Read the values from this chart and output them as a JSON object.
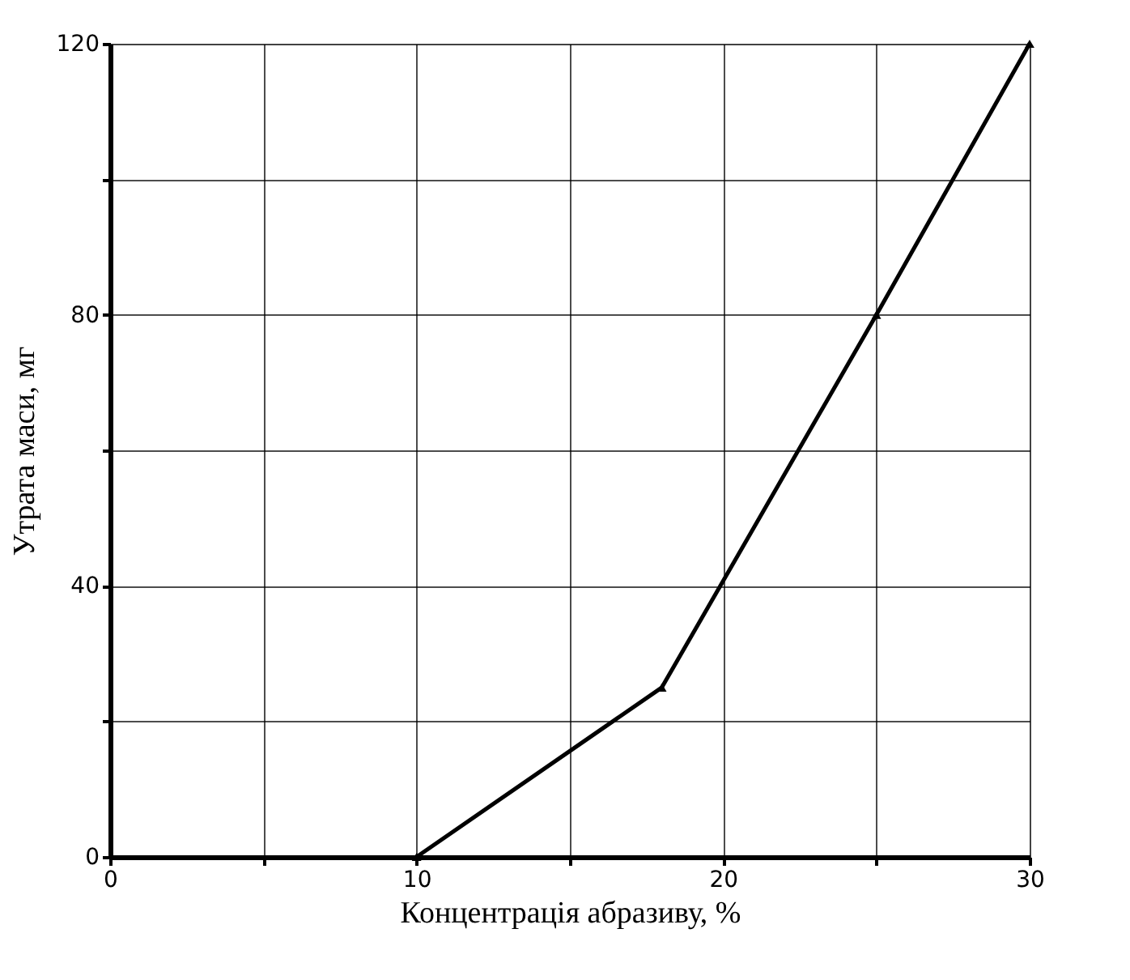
{
  "chart_data": {
    "type": "line",
    "xlabel": "Концентрація абразиву, %",
    "ylabel": "Утрата маси, мг",
    "x": [
      10,
      18,
      25,
      30
    ],
    "series": [
      {
        "color": "#000000",
        "values": [
          0,
          25,
          80,
          120
        ]
      }
    ],
    "xlim": [
      0,
      30
    ],
    "ylim": [
      0,
      120
    ],
    "xticks": [
      0,
      {
        "value": 5,
        "label": null
      },
      10,
      {
        "value": 15,
        "label": null
      },
      20,
      {
        "value": 25,
        "label": null
      },
      30
    ],
    "yticks": [
      0,
      {
        "value": 20,
        "label": null
      },
      40,
      {
        "value": 60,
        "label": null
      },
      80,
      {
        "value": 100,
        "label": null
      },
      120
    ],
    "grid": true,
    "marker": "triangle",
    "line_style": "solid"
  }
}
